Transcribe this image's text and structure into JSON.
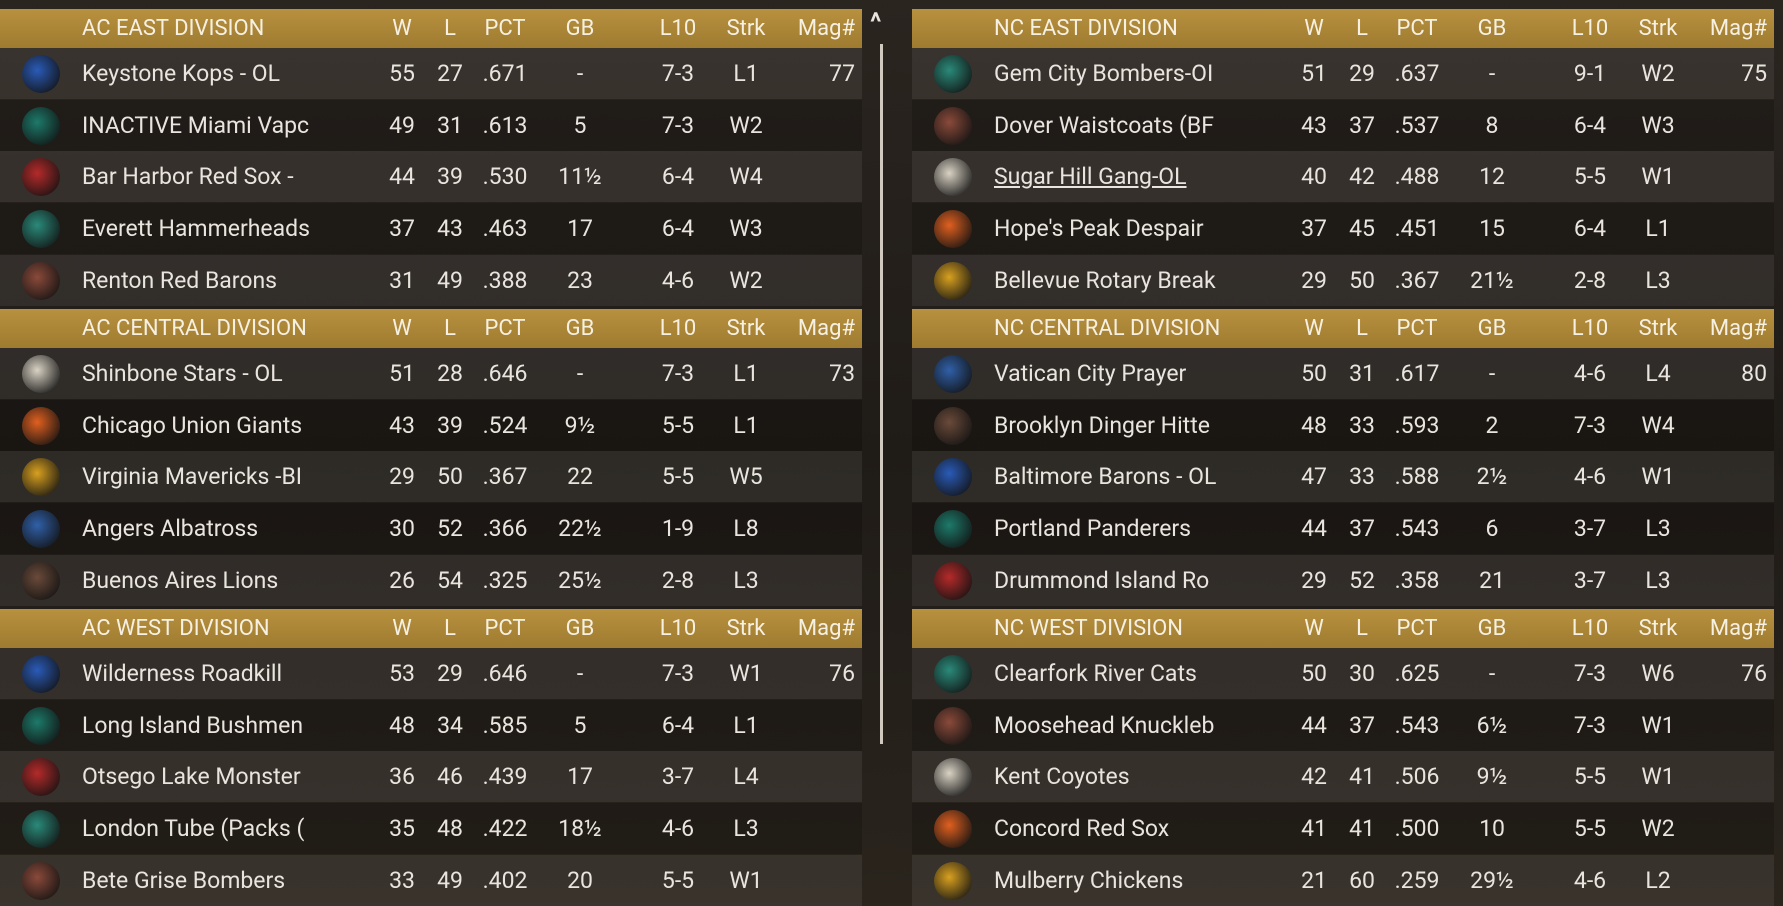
{
  "columns": [
    "W",
    "L",
    "PCT",
    "GB",
    "L10",
    "Strk",
    "Mag#"
  ],
  "panels": [
    {
      "divisions": [
        {
          "name": "AC EAST DIVISION",
          "teams": [
            {
              "team": "Keystone Kops - OL",
              "w": 55,
              "l": 27,
              "pct": ".671",
              "gb": "-",
              "l10": "7-3",
              "strk": "L1",
              "mag": 77
            },
            {
              "team": "INACTIVE Miami Vapc",
              "w": 49,
              "l": 31,
              "pct": ".613",
              "gb": "5",
              "l10": "7-3",
              "strk": "W2"
            },
            {
              "team": "Bar Harbor Red Sox -",
              "w": 44,
              "l": 39,
              "pct": ".530",
              "gb": "11½",
              "l10": "6-4",
              "strk": "W4"
            },
            {
              "team": "Everett Hammerheads",
              "w": 37,
              "l": 43,
              "pct": ".463",
              "gb": "17",
              "l10": "6-4",
              "strk": "W3"
            },
            {
              "team": "Renton Red Barons",
              "w": 31,
              "l": 49,
              "pct": ".388",
              "gb": "23",
              "l10": "4-6",
              "strk": "W2"
            }
          ]
        },
        {
          "name": "AC CENTRAL DIVISION",
          "teams": [
            {
              "team": "Shinbone Stars - OL",
              "w": 51,
              "l": 28,
              "pct": ".646",
              "gb": "-",
              "l10": "7-3",
              "strk": "L1",
              "mag": 73
            },
            {
              "team": "Chicago Union Giants",
              "w": 43,
              "l": 39,
              "pct": ".524",
              "gb": "9½",
              "l10": "5-5",
              "strk": "L1"
            },
            {
              "team": "Virginia Mavericks -BI",
              "w": 29,
              "l": 50,
              "pct": ".367",
              "gb": "22",
              "l10": "5-5",
              "strk": "W5"
            },
            {
              "team": "Angers Albatross",
              "w": 30,
              "l": 52,
              "pct": ".366",
              "gb": "22½",
              "l10": "1-9",
              "strk": "L8"
            },
            {
              "team": "Buenos Aires Lions",
              "w": 26,
              "l": 54,
              "pct": ".325",
              "gb": "25½",
              "l10": "2-8",
              "strk": "L3"
            }
          ]
        },
        {
          "name": "AC WEST DIVISION",
          "teams": [
            {
              "team": "Wilderness Roadkill",
              "w": 53,
              "l": 29,
              "pct": ".646",
              "gb": "-",
              "l10": "7-3",
              "strk": "W1",
              "mag": 76
            },
            {
              "team": "Long Island Bushmen",
              "w": 48,
              "l": 34,
              "pct": ".585",
              "gb": "5",
              "l10": "6-4",
              "strk": "L1"
            },
            {
              "team": "Otsego Lake Monster",
              "w": 36,
              "l": 46,
              "pct": ".439",
              "gb": "17",
              "l10": "3-7",
              "strk": "L4"
            },
            {
              "team": "London Tube (Packs (",
              "w": 35,
              "l": 48,
              "pct": ".422",
              "gb": "18½",
              "l10": "4-6",
              "strk": "L3"
            },
            {
              "team": "Bete Grise Bombers",
              "w": 33,
              "l": 49,
              "pct": ".402",
              "gb": "20",
              "l10": "5-5",
              "strk": "W1"
            }
          ]
        }
      ]
    },
    {
      "divisions": [
        {
          "name": "NC EAST DIVISION",
          "teams": [
            {
              "team": "Gem City Bombers-OI",
              "w": 51,
              "l": 29,
              "pct": ".637",
              "gb": "-",
              "l10": "9-1",
              "strk": "W2",
              "mag": 75
            },
            {
              "team": "Dover Waistcoats (BF",
              "w": 43,
              "l": 37,
              "pct": ".537",
              "gb": "8",
              "l10": "6-4",
              "strk": "W3"
            },
            {
              "team": "Sugar Hill Gang-OL",
              "w": 40,
              "l": 42,
              "pct": ".488",
              "gb": "12",
              "l10": "5-5",
              "strk": "W1",
              "underlined": true
            },
            {
              "team": "Hope's Peak Despair",
              "w": 37,
              "l": 45,
              "pct": ".451",
              "gb": "15",
              "l10": "6-4",
              "strk": "L1"
            },
            {
              "team": "Bellevue Rotary Break",
              "w": 29,
              "l": 50,
              "pct": ".367",
              "gb": "21½",
              "l10": "2-8",
              "strk": "L3"
            }
          ]
        },
        {
          "name": "NC CENTRAL DIVISION",
          "teams": [
            {
              "team": "Vatican City Prayer",
              "w": 50,
              "l": 31,
              "pct": ".617",
              "gb": "-",
              "l10": "4-6",
              "strk": "L4",
              "mag": 80
            },
            {
              "team": "Brooklyn Dinger Hitte",
              "w": 48,
              "l": 33,
              "pct": ".593",
              "gb": "2",
              "l10": "7-3",
              "strk": "W4"
            },
            {
              "team": "Baltimore Barons - OL",
              "w": 47,
              "l": 33,
              "pct": ".588",
              "gb": "2½",
              "l10": "4-6",
              "strk": "W1"
            },
            {
              "team": "Portland Panderers",
              "w": 44,
              "l": 37,
              "pct": ".543",
              "gb": "6",
              "l10": "3-7",
              "strk": "L3"
            },
            {
              "team": "Drummond Island Ro",
              "w": 29,
              "l": 52,
              "pct": ".358",
              "gb": "21",
              "l10": "3-7",
              "strk": "L3"
            }
          ]
        },
        {
          "name": "NC WEST DIVISION",
          "teams": [
            {
              "team": "Clearfork River Cats",
              "w": 50,
              "l": 30,
              "pct": ".625",
              "gb": "-",
              "l10": "7-3",
              "strk": "W6",
              "mag": 76
            },
            {
              "team": "Moosehead Knuckleb",
              "w": 44,
              "l": 37,
              "pct": ".543",
              "gb": "6½",
              "l10": "7-3",
              "strk": "W1"
            },
            {
              "team": "Kent Coyotes",
              "w": 42,
              "l": 41,
              "pct": ".506",
              "gb": "9½",
              "l10": "5-5",
              "strk": "W1"
            },
            {
              "team": "Concord Red Sox",
              "w": 41,
              "l": 41,
              "pct": ".500",
              "gb": "10",
              "l10": "5-5",
              "strk": "W2"
            },
            {
              "team": "Mulberry Chickens",
              "w": 21,
              "l": 60,
              "pct": ".259",
              "gb": "29½",
              "l10": "4-6",
              "strk": "L2"
            }
          ]
        }
      ]
    }
  ]
}
